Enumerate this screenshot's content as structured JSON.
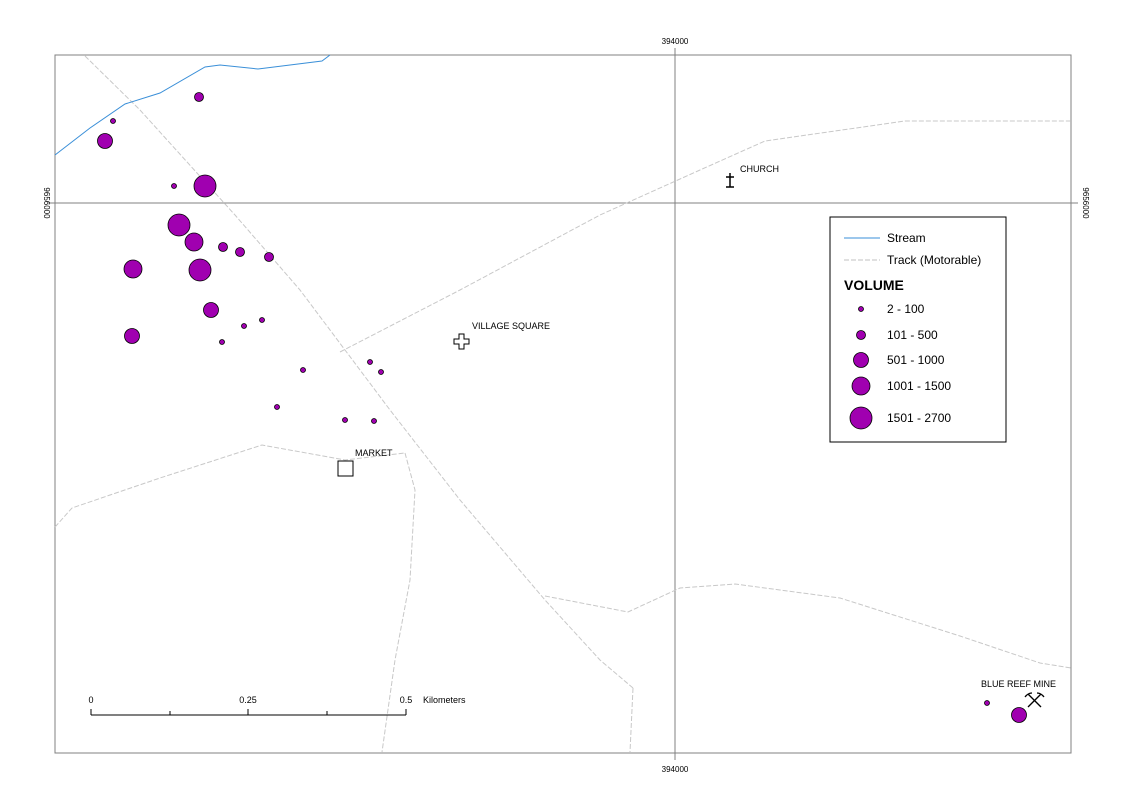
{
  "grid": {
    "easting_label": "394000",
    "northing_label": "9656000"
  },
  "places": {
    "church": "CHURCH",
    "village_square": "VILLAGE SQUARE",
    "market": "MARKET",
    "blue_reef_mine": "BLUE REEF MINE"
  },
  "legend": {
    "stream": "Stream",
    "track": "Track (Motorable)",
    "title": "VOLUME",
    "classes": [
      {
        "label": "2 - 100"
      },
      {
        "label": "101 - 500"
      },
      {
        "label": "501 - 1000"
      },
      {
        "label": "1001 - 1500"
      },
      {
        "label": "1501 - 2700"
      }
    ]
  },
  "scalebar": {
    "ticks": [
      "0",
      "0.25",
      "0.5"
    ],
    "unit": "Kilometers"
  },
  "colors": {
    "symbol_fill": "#a000b0",
    "stream": "#3a8fd8",
    "track": "#c0c0c0"
  }
}
